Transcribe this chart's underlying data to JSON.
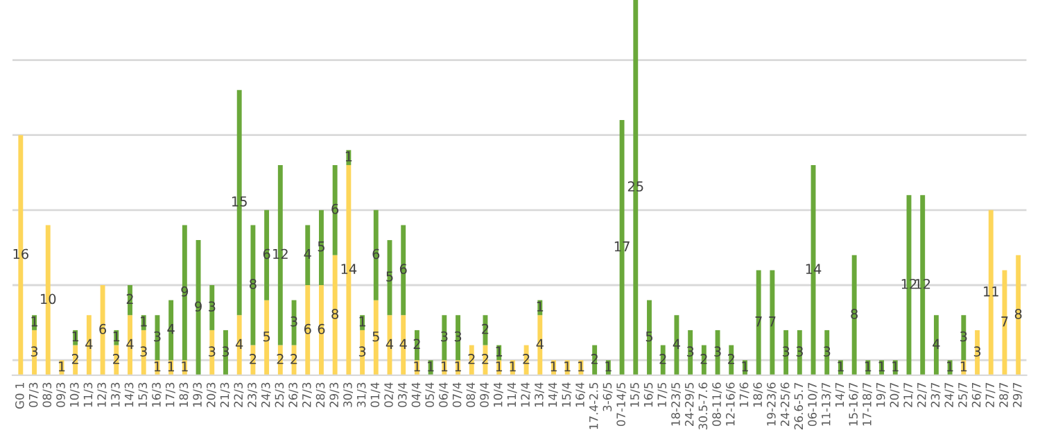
{
  "chart_data": {
    "type": "bar",
    "stacked": true,
    "data_labels": true,
    "grid": "y",
    "legend": false,
    "tick_labels": "x",
    "ylim": [
      0,
      25
    ],
    "yticks": [
      {
        "value": 1,
        "label": null
      },
      {
        "value": 6,
        "label": null
      },
      {
        "value": 11,
        "label": null
      },
      {
        "value": 16,
        "label": null
      },
      {
        "value": 21,
        "label": null
      }
    ],
    "categories": [
      "G0 1",
      "07/3",
      "08/3",
      "09/3",
      "10/3",
      "11/3",
      "12/3",
      "13/3",
      "14/3",
      "15/3",
      "16/3",
      "17/3",
      "18/3",
      "19/3",
      "20/3",
      "21/3",
      "22/3",
      "23/3",
      "24/3",
      "25/3",
      "26/3",
      "27/3",
      "28/3",
      "29/3",
      "30/3",
      "31/3",
      "01/4",
      "02/4",
      "03/4",
      "04/4",
      "05/4",
      "06/4",
      "07/4",
      "08/4",
      "09/4",
      "10/4",
      "11/4",
      "12/4",
      "13/4",
      "14/4",
      "15/4",
      "16/4",
      "17.4-2.5",
      "3-6/5",
      "07-14/5",
      "15/5",
      "16/5",
      "17/5",
      "18-23/5",
      "24-29/5",
      "30.5-7.6",
      "08-11/6",
      "12-16/6",
      "17/6",
      "18/6",
      "19-23/6",
      "24-25/6",
      "26.6-5.7",
      "06-10/7",
      "11-13/7",
      "14/7",
      "15-16/7",
      "17-18/7",
      "19/7",
      "20/7",
      "21/7",
      "22/7",
      "23/7",
      "24/7",
      "25/7",
      "26/7",
      "27/7",
      "28/7",
      "29/7"
    ],
    "series": [
      {
        "color": "#fdd65a",
        "values": [
          16,
          3,
          10,
          1,
          2,
          4,
          6,
          2,
          4,
          3,
          1,
          1,
          1,
          null,
          3,
          null,
          4,
          2,
          5,
          2,
          2,
          6,
          6,
          8,
          14,
          3,
          5,
          4,
          4,
          1,
          null,
          1,
          1,
          2,
          2,
          1,
          1,
          2,
          4,
          1,
          1,
          1,
          null,
          null,
          null,
          null,
          null,
          null,
          null,
          null,
          null,
          null,
          null,
          null,
          null,
          null,
          null,
          null,
          null,
          null,
          null,
          null,
          null,
          null,
          null,
          null,
          null,
          null,
          null,
          1,
          3,
          11,
          7,
          8
        ]
      },
      {
        "color": "#6aa83a",
        "values": [
          null,
          1,
          null,
          null,
          1,
          null,
          null,
          1,
          2,
          1,
          3,
          4,
          9,
          9,
          3,
          3,
          15,
          8,
          6,
          12,
          3,
          4,
          5,
          6,
          1,
          1,
          6,
          5,
          6,
          2,
          1,
          3,
          3,
          null,
          2,
          1,
          null,
          null,
          1,
          null,
          null,
          null,
          2,
          1,
          17,
          25,
          5,
          2,
          4,
          3,
          2,
          3,
          2,
          1,
          7,
          7,
          3,
          3,
          14,
          3,
          1,
          8,
          1,
          1,
          1,
          12,
          12,
          4,
          1,
          3,
          null,
          null,
          null,
          null
        ]
      }
    ]
  }
}
